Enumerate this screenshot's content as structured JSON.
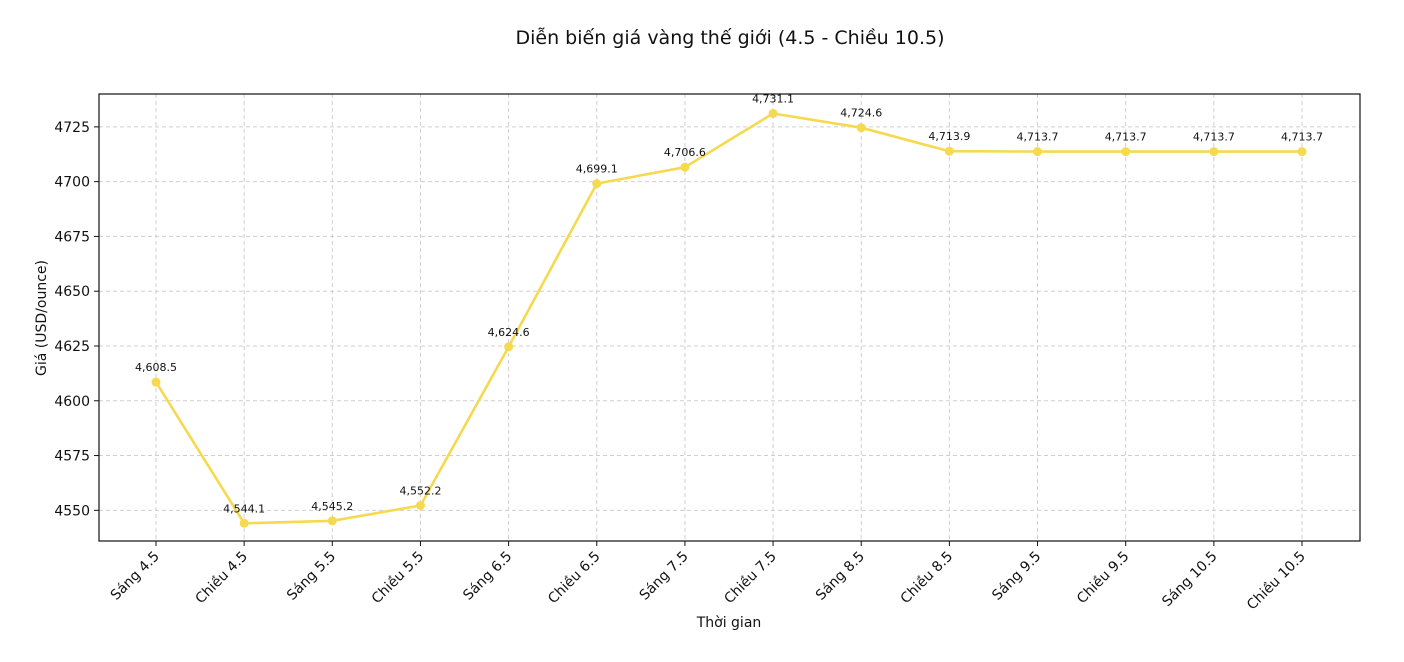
{
  "chart_data": {
    "type": "line",
    "title": "Diễn biến giá vàng thế giới (4.5 - Chiều 10.5)",
    "xlabel": "Thời gian",
    "ylabel": "Giá (USD/ounce)",
    "categories": [
      "Sáng 4.5",
      "Chiều 4.5",
      "Sáng 5.5",
      "Chiều 5.5",
      "Sáng 6.5",
      "Chiều 6.5",
      "Sáng 7.5",
      "Chiều 7.5",
      "Sáng 8.5",
      "Chiều 8.5",
      "Sáng 9.5",
      "Chiều 9.5",
      "Sáng 10.5",
      "Chiều 10.5"
    ],
    "values": [
      4608.5,
      4544.1,
      4545.2,
      4552.2,
      4624.6,
      4699.1,
      4706.6,
      4731.1,
      4724.6,
      4713.9,
      4713.7,
      4713.7,
      4713.7,
      4713.7
    ],
    "data_labels": [
      "4,608.5",
      "4,544.1",
      "4,545.2",
      "4,552.2",
      "4,624.6",
      "4,699.1",
      "4,706.6",
      "4,731.1",
      "4,724.6",
      "4,713.9",
      "4,713.7",
      "4,713.7",
      "4,713.7",
      "4,713.7"
    ],
    "ylim": [
      4536,
      4740
    ],
    "yticks": [
      4550,
      4575,
      4600,
      4625,
      4650,
      4675,
      4700,
      4725
    ],
    "grid": true,
    "color": "#f5d94e"
  }
}
